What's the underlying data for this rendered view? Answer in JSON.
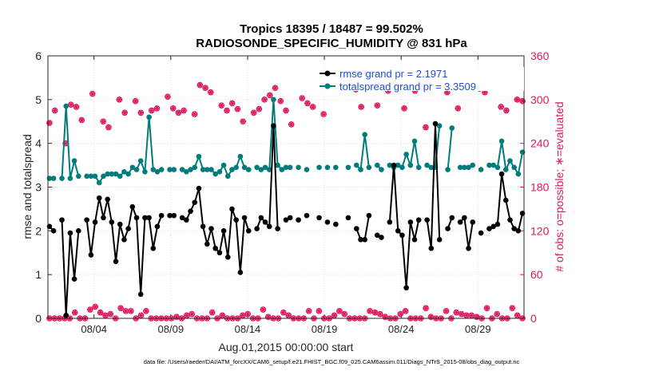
{
  "chart_data": {
    "type": "line",
    "title": "Tropics 18395 / 18487 = 99.502%",
    "subtitle": "RADIOSONDE_SPECIFIC_HUMIDITY @ 831 hPa",
    "xlabel": "Aug.01,2015 00:00:00 start",
    "ylabel_left": "rmse and totalspread",
    "ylabel_right": "# of obs: o=possible; ∗=evaluated",
    "footnote": "data file: /Users/raeder/DAI/ATM_forcXX/CAM6_setup/f.e21.FHIST_BGC.f09_025.CAM6assim.011/Diags_NTrS_2015-08/obs_diag_output.nc",
    "xlim": [
      1.0,
      32.0
    ],
    "ylim_left": [
      0,
      6
    ],
    "ylim_right": [
      0,
      360
    ],
    "x_ticks": [
      4,
      9,
      14,
      19,
      24,
      29
    ],
    "x_tick_labels": [
      "08/04",
      "08/09",
      "08/14",
      "08/19",
      "08/24",
      "08/29"
    ],
    "y_ticks_left": [
      0,
      1,
      2,
      3,
      4,
      5,
      6
    ],
    "y_ticks_right": [
      0,
      60,
      120,
      180,
      240,
      300,
      360
    ],
    "legend": [
      "rmse grand pr = 2.1971",
      "totalspread grand pr = 3.3509"
    ],
    "legend_position": "top-right",
    "series": [
      {
        "name": "rmse",
        "color": "#000000",
        "axis": "left",
        "values": [
          2.1,
          2.0,
          null,
          2.25,
          0.07,
          1.95,
          0.9,
          2.0,
          null,
          2.25,
          1.45,
          2.2,
          2.75,
          2.3,
          2.72,
          2.2,
          1.3,
          2.15,
          1.8,
          2.05,
          2.55,
          2.3,
          0.55,
          2.3,
          2.3,
          1.6,
          2.1,
          2.35,
          null,
          2.35,
          2.35,
          null,
          2.3,
          2.25,
          2.45,
          2.65,
          2.97,
          2.1,
          1.7,
          2.05,
          1.6,
          1.5,
          2.0,
          1.4,
          2.5,
          2.25,
          1.05,
          2.3,
          2.0,
          null,
          2.05,
          2.3,
          2.2,
          2.1,
          4.4,
          2.05,
          null,
          2.25,
          2.3,
          null,
          2.25,
          null,
          2.35,
          null,
          null,
          2.3,
          null,
          2.2,
          null,
          2.15,
          null,
          null,
          2.3,
          null,
          2.05,
          1.8,
          1.8,
          2.35,
          null,
          1.9,
          1.85,
          null,
          2.2,
          3.5,
          2.0,
          1.9,
          0.7,
          2.2,
          1.8,
          2.25,
          null,
          2.25,
          1.6,
          4.45,
          1.8,
          null,
          2.05,
          2.3,
          null,
          2.2,
          2.3,
          1.6,
          2.2,
          null,
          1.95,
          null,
          2.05,
          2.1,
          2.15,
          3.3,
          2.7,
          2.25,
          2.05,
          2.0,
          2.4
        ]
      },
      {
        "name": "totalspread",
        "color": "#007c7c",
        "axis": "left",
        "values": [
          3.2,
          3.2,
          null,
          3.2,
          4.85,
          3.2,
          3.6,
          3.25,
          null,
          3.25,
          3.25,
          3.25,
          3.1,
          3.25,
          3.3,
          3.3,
          3.3,
          3.25,
          3.35,
          3.3,
          3.45,
          3.4,
          3.6,
          3.35,
          4.6,
          3.4,
          3.35,
          3.4,
          null,
          3.4,
          3.4,
          null,
          3.4,
          3.35,
          3.4,
          3.45,
          3.7,
          3.4,
          3.4,
          3.4,
          3.3,
          3.35,
          3.5,
          3.25,
          3.4,
          3.45,
          3.7,
          3.45,
          3.4,
          null,
          3.45,
          3.4,
          3.45,
          3.4,
          5.0,
          3.5,
          3.4,
          3.45,
          3.45,
          null,
          3.45,
          null,
          3.4,
          null,
          null,
          3.45,
          null,
          3.45,
          null,
          3.45,
          null,
          null,
          3.45,
          null,
          3.5,
          3.4,
          4.2,
          3.45,
          null,
          3.5,
          3.4,
          null,
          3.5,
          3.45,
          3.5,
          3.45,
          3.75,
          3.5,
          4.05,
          3.45,
          null,
          3.5,
          3.45,
          3.45,
          4.4,
          null,
          3.4,
          4.35,
          null,
          3.45,
          3.45,
          3.45,
          3.5,
          null,
          3.4,
          null,
          3.5,
          3.5,
          3.45,
          4.05,
          3.4,
          3.6,
          3.45,
          3.3,
          3.8
        ]
      },
      {
        "name": "# of obs possible (o)",
        "color": "#e0175f",
        "axis": "right",
        "values": [
          268,
          285,
          null,
          240,
          293,
          290,
          272,
          null,
          308,
          null,
          270,
          262,
          null,
          300,
          282,
          null,
          298,
          282,
          null,
          285,
          288,
          null,
          304,
          288,
          282,
          285,
          null,
          280,
          320,
          316,
          310,
          null,
          292,
          285,
          295,
          287,
          270,
          null,
          282,
          287,
          300,
          306,
          316,
          298,
          285,
          266,
          null,
          302,
          295,
          290,
          null,
          280,
          null,
          316,
          null,
          330,
          null,
          314,
          290,
          null,
          318,
          292,
          null,
          312,
          322,
          null,
          288,
          null,
          312,
          null,
          262,
          null,
          328,
          null,
          310,
          null,
          288,
          null,
          326,
          null,
          315,
          310,
          324,
          null,
          290,
          285,
          null,
          300,
          298
        ]
      },
      {
        "name": "# of obs evaluated (*)",
        "color": "#e0175f",
        "axis": "right",
        "values": [
          268,
          285,
          null,
          240,
          293,
          290,
          272,
          null,
          308,
          null,
          270,
          262,
          null,
          300,
          282,
          null,
          298,
          282,
          null,
          285,
          288,
          null,
          304,
          288,
          282,
          285,
          null,
          280,
          320,
          316,
          310,
          null,
          292,
          285,
          295,
          287,
          270,
          null,
          282,
          287,
          300,
          306,
          316,
          298,
          285,
          266,
          null,
          302,
          295,
          290,
          null,
          280,
          null,
          316,
          null,
          330,
          null,
          314,
          290,
          null,
          318,
          292,
          null,
          312,
          322,
          null,
          288,
          null,
          312,
          null,
          262,
          null,
          328,
          null,
          310,
          null,
          288,
          null,
          326,
          null,
          315,
          310,
          324,
          null,
          290,
          285,
          null,
          300,
          298
        ]
      }
    ],
    "obs_low_values": [
      0,
      0,
      0,
      0,
      0,
      8,
      0,
      0,
      12,
      16,
      8,
      4,
      6,
      0,
      14,
      10,
      10,
      0,
      4,
      10,
      0,
      0,
      0,
      0,
      0,
      2,
      0,
      4,
      6,
      0,
      0,
      0,
      8,
      0,
      4,
      0,
      0,
      0,
      4,
      6,
      0,
      0,
      12,
      2,
      0,
      0,
      8,
      4,
      0,
      0,
      0,
      10,
      0,
      10,
      0,
      0,
      4,
      10,
      6,
      0,
      0,
      0,
      0,
      10,
      8,
      6,
      2,
      0,
      0,
      6,
      10,
      0,
      0,
      0,
      14,
      2,
      0,
      0,
      10,
      0,
      8,
      6,
      4,
      4,
      2,
      0,
      14,
      0,
      6,
      0,
      0,
      14,
      4,
      0
    ]
  }
}
